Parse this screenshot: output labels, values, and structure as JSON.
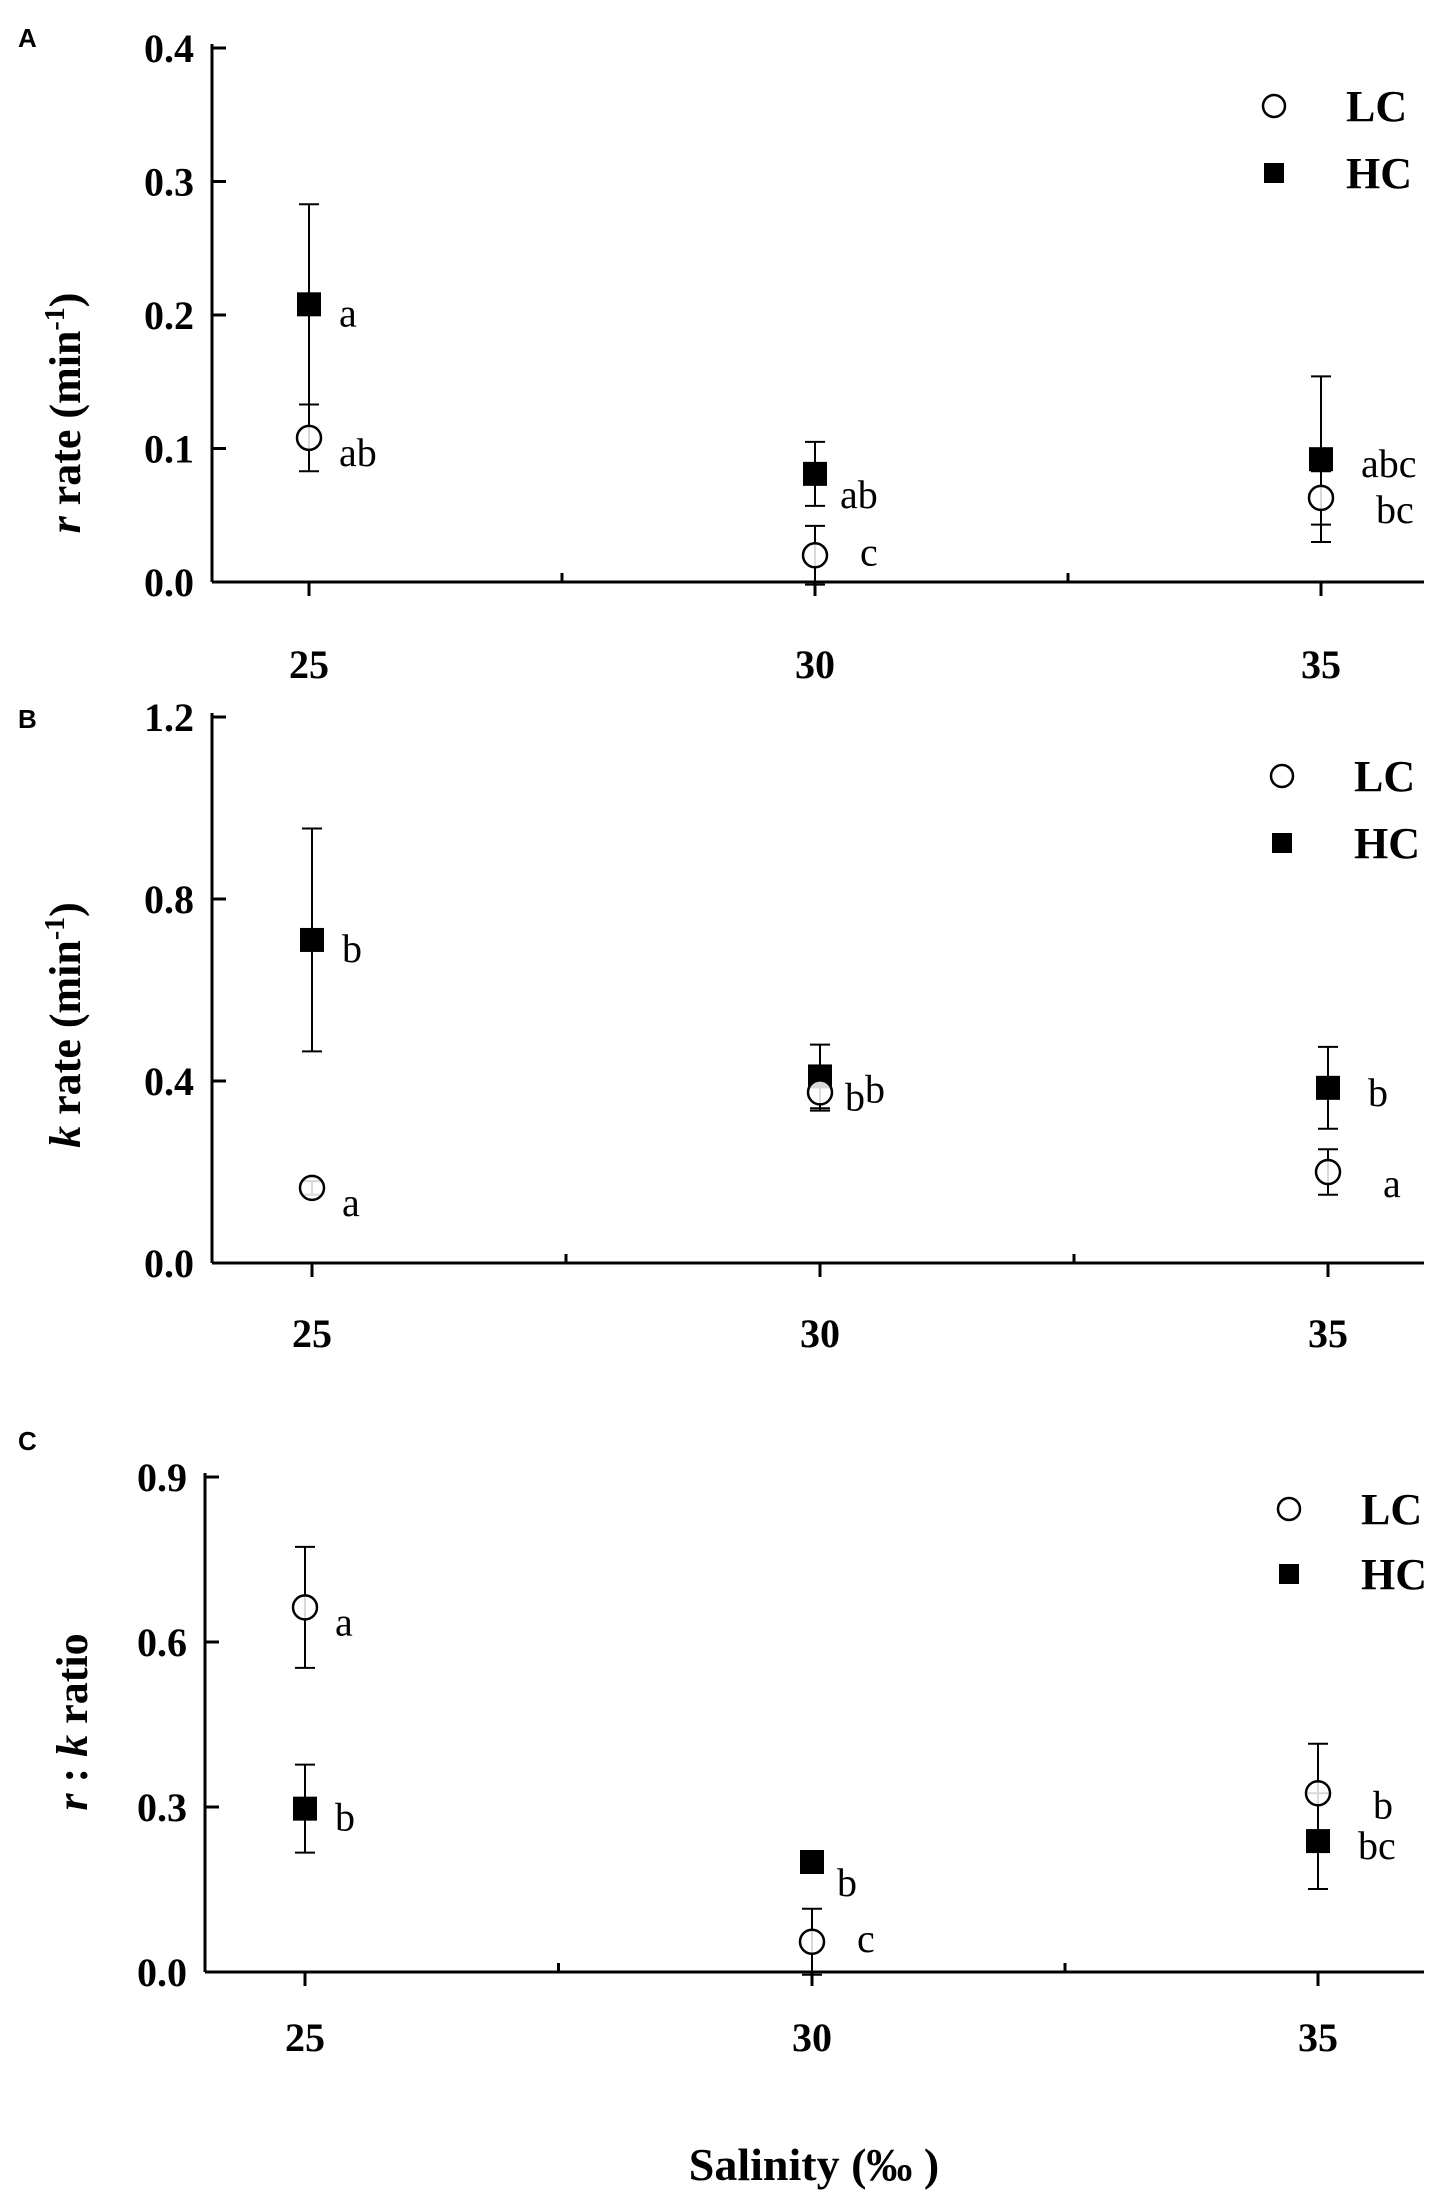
{
  "chart_data": [
    {
      "panel": "A",
      "type": "scatter",
      "ylabel": {
        "italic": "r",
        "text": " rate (min",
        "sup": "-1",
        "end": ")"
      },
      "ylim": [
        0,
        0.4
      ],
      "yticks": [
        "0.0",
        "0.1",
        "0.2",
        "0.3",
        "0.4"
      ],
      "x": [
        25,
        30,
        35
      ],
      "xticks": [
        "25",
        "30",
        "35"
      ],
      "legend": {
        "position": "top-right",
        "entries": [
          "LC",
          "HC"
        ]
      },
      "series": [
        {
          "name": "LC",
          "marker": "open-circle",
          "values": [
            0.108,
            0.02,
            0.063
          ],
          "errors": [
            0.025,
            0.022,
            0.02
          ],
          "letters": [
            "ab",
            "c",
            "bc"
          ]
        },
        {
          "name": "HC",
          "marker": "filled-square",
          "values": [
            0.208,
            0.081,
            0.092
          ],
          "errors": [
            0.075,
            0.024,
            0.062
          ],
          "letters": [
            "a",
            "ab",
            "abc"
          ]
        }
      ]
    },
    {
      "panel": "B",
      "type": "scatter",
      "ylabel": {
        "italic": "k",
        "text": " rate (min",
        "sup": "-1",
        "end": ")"
      },
      "ylim": [
        0,
        1.2
      ],
      "yticks": [
        "0.0",
        "0.4",
        "0.8",
        "1.2"
      ],
      "x": [
        25,
        30,
        35
      ],
      "xticks": [
        "25",
        "30",
        "35"
      ],
      "legend": {
        "position": "top-right",
        "entries": [
          "LC",
          "HC"
        ]
      },
      "series": [
        {
          "name": "LC",
          "marker": "open-circle",
          "values": [
            0.165,
            0.375,
            0.2
          ],
          "errors": [
            0.015,
            0.04,
            0.05
          ],
          "letters": [
            "a",
            "b",
            "a"
          ]
        },
        {
          "name": "HC",
          "marker": "filled-square",
          "values": [
            0.71,
            0.41,
            0.385
          ],
          "errors": [
            0.245,
            0.07,
            0.09
          ],
          "letters": [
            "b",
            "b",
            "b"
          ]
        }
      ]
    },
    {
      "panel": "C",
      "type": "scatter",
      "ylabel": {
        "italic": "r",
        "text": " : ",
        "italic2": "k",
        "text2": " ratio"
      },
      "ylim": [
        0,
        0.9
      ],
      "yticks": [
        "0.0",
        "0.3",
        "0.6",
        "0.9"
      ],
      "x": [
        25,
        30,
        35
      ],
      "xticks": [
        "25",
        "30",
        "35"
      ],
      "xlabel": "Salinity (‰ )",
      "legend": {
        "position": "top-right",
        "entries": [
          "LC",
          "HC"
        ]
      },
      "series": [
        {
          "name": "LC",
          "marker": "open-circle",
          "values": [
            0.663,
            0.055,
            0.325
          ],
          "errors": [
            0.11,
            0.06,
            0.09
          ],
          "letters": [
            "a",
            "c",
            "b"
          ]
        },
        {
          "name": "HC",
          "marker": "filled-square",
          "values": [
            0.297,
            0.2,
            0.238
          ],
          "errors": [
            0.08,
            0.02,
            0.087
          ],
          "letters": [
            "b",
            "b",
            "bc"
          ]
        }
      ]
    }
  ]
}
